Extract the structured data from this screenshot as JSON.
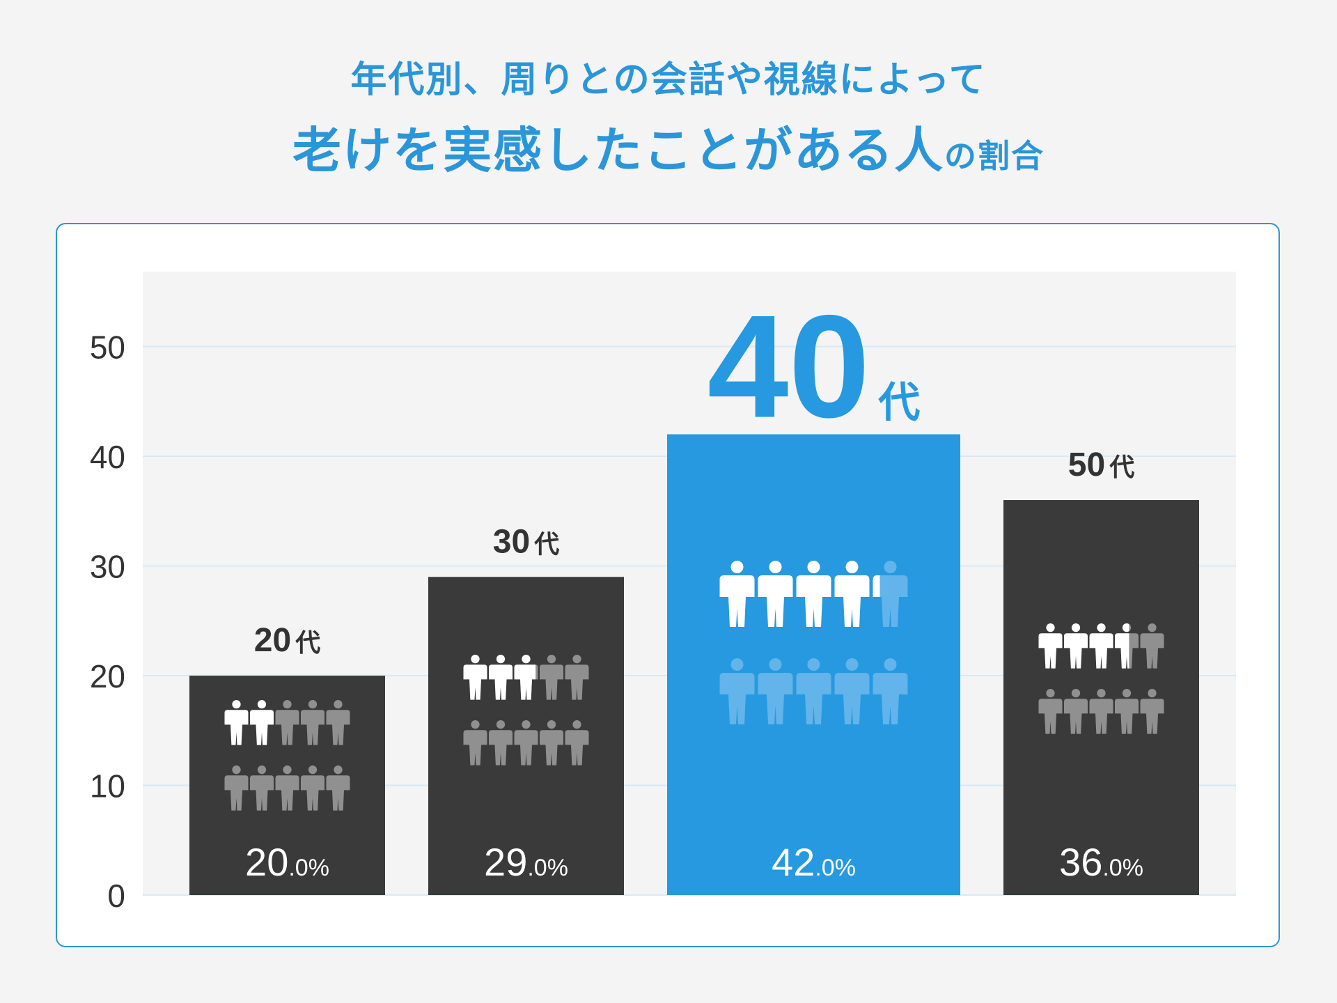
{
  "header": {
    "line1": "年代別、周りとの会話や視線によって",
    "line2_main": "老けを実感したことがある人",
    "line2_small": "の割合"
  },
  "colors": {
    "title": "#2a96d9",
    "bar_dark": "#3a3a3a",
    "bar_highlight": "#2699e0",
    "plot_bg": "#f4f4f4",
    "grid": "#d6eaf8",
    "icon_white": "#ffffff",
    "icon_gray": "#909090",
    "icon_light_blue": "#62b4ea",
    "label_dark": "#333333"
  },
  "chart_data": {
    "type": "bar",
    "categories": [
      "20代",
      "30代",
      "40代",
      "50代"
    ],
    "values": [
      20.0,
      29.0,
      42.0,
      36.0
    ],
    "category_labels": [
      {
        "num": "20",
        "suffix": "代"
      },
      {
        "num": "30",
        "suffix": "代"
      },
      {
        "num": "40",
        "suffix": "代"
      },
      {
        "num": "50",
        "suffix": "代"
      }
    ],
    "value_labels": [
      {
        "int": "20",
        "dec": ".0%"
      },
      {
        "int": "29",
        "dec": ".0%"
      },
      {
        "int": "42",
        "dec": ".0%"
      },
      {
        "int": "36",
        "dec": ".0%"
      }
    ],
    "highlight_index": 2,
    "icons_per_bar": 10,
    "filled_icons": [
      2.0,
      2.9,
      4.2,
      3.6
    ],
    "ylim": [
      0,
      57
    ],
    "yticks": [
      0,
      10,
      20,
      30,
      40,
      50
    ],
    "ytick_labels": [
      "0",
      "10",
      "20",
      "30",
      "40",
      "50"
    ],
    "grid": true,
    "xlabel": "",
    "ylabel": ""
  }
}
